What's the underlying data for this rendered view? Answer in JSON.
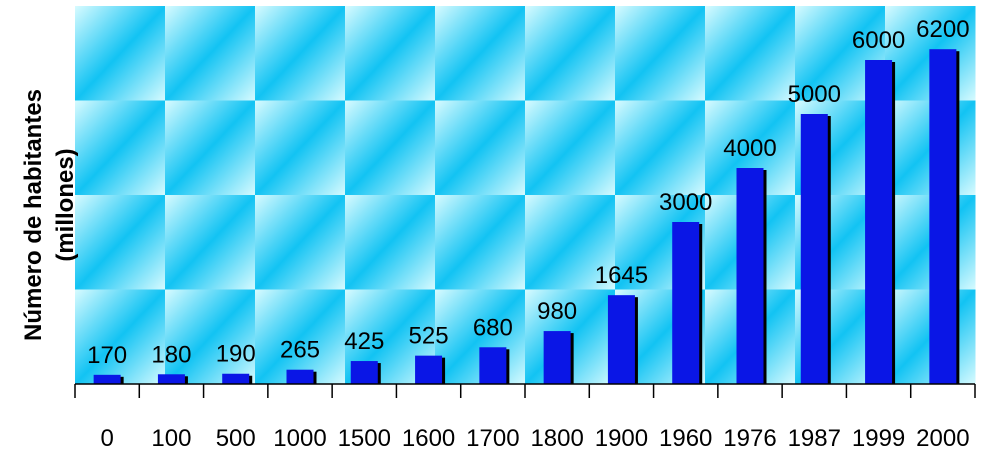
{
  "chart_data": {
    "type": "bar",
    "title": "",
    "xlabel": "",
    "ylabel_line1": "Número de habitantes",
    "ylabel_line2": "(millones)",
    "categories": [
      "0",
      "100",
      "500",
      "1000",
      "1500",
      "1600",
      "1700",
      "1800",
      "1900",
      "1960",
      "1976",
      "1987",
      "1999",
      "2000"
    ],
    "values": [
      170,
      180,
      190,
      265,
      425,
      525,
      680,
      980,
      1645,
      3000,
      4000,
      5000,
      6000,
      6200
    ],
    "data_labels": [
      "170",
      "180",
      "190",
      "265",
      "425",
      "525",
      "680",
      "980",
      "1645",
      "3000",
      "4000",
      "5000",
      "6000",
      "6200"
    ],
    "ylim": [
      0,
      7000
    ],
    "grid": false,
    "legend": "none",
    "colors": {
      "bar": "#0a16e6",
      "bar_shadow": "#000000",
      "background_light": "#d8fbff",
      "background_dark": "#12c3f3",
      "axis": "#000000"
    }
  }
}
